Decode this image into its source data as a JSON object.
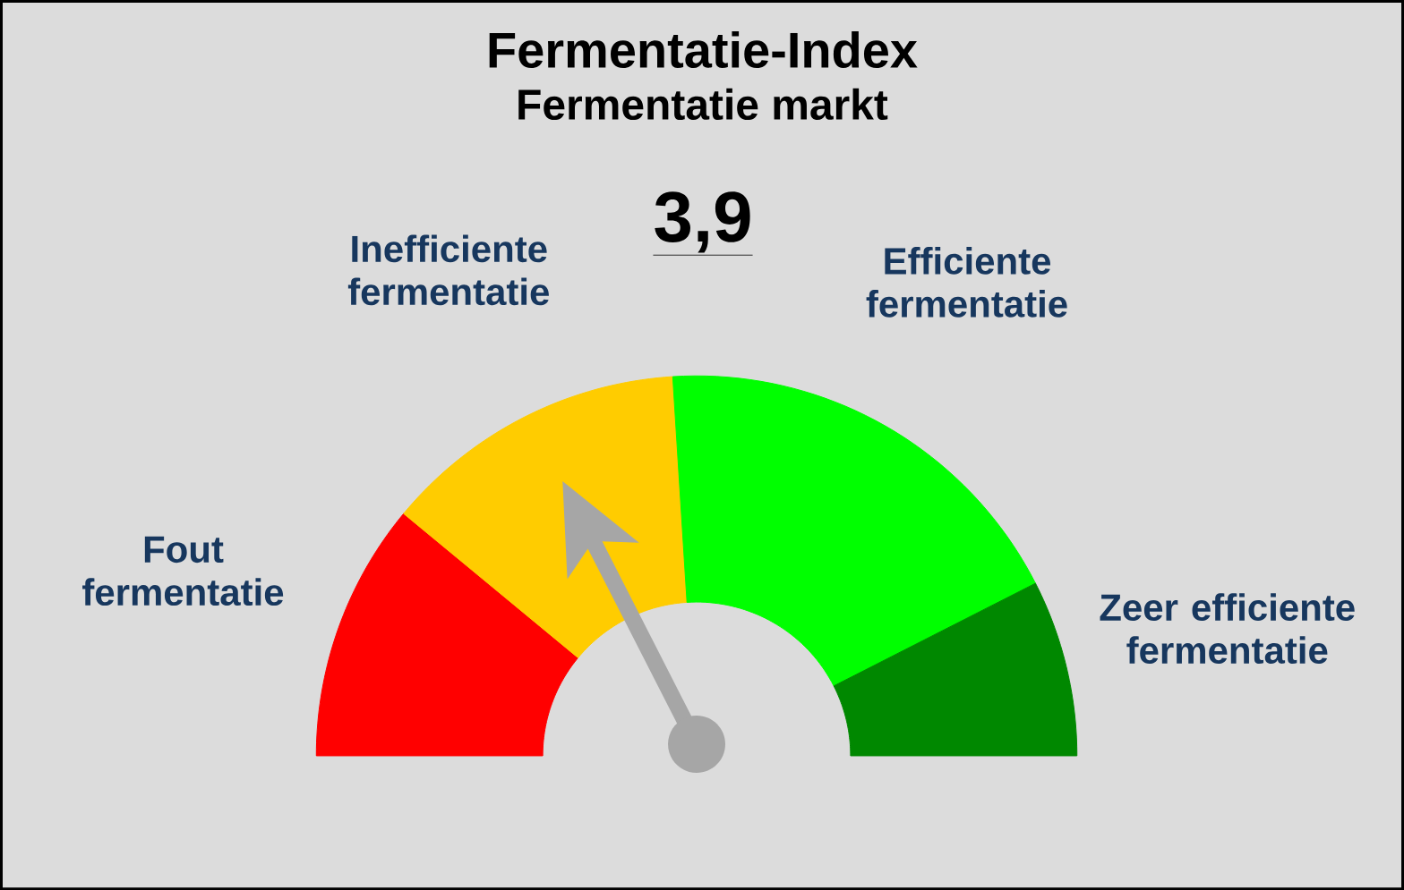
{
  "chart_data": {
    "type": "donut",
    "title": "Fermentatie-Index",
    "subtitle": "Fermentatie markt",
    "annotations": [
      "3,9"
    ],
    "categories": [
      "Fout fermentatie",
      "Inefficiente fermentatie",
      "Efficiente fermentatie",
      "Zeer efficiente fermentatie"
    ],
    "values": [
      22,
      26,
      37,
      15
    ],
    "colors": [
      "#ff0000",
      "#ffcc00",
      "#00ff00",
      "#008800"
    ],
    "needle": "Inefficiente fermentatie"
  }
}
